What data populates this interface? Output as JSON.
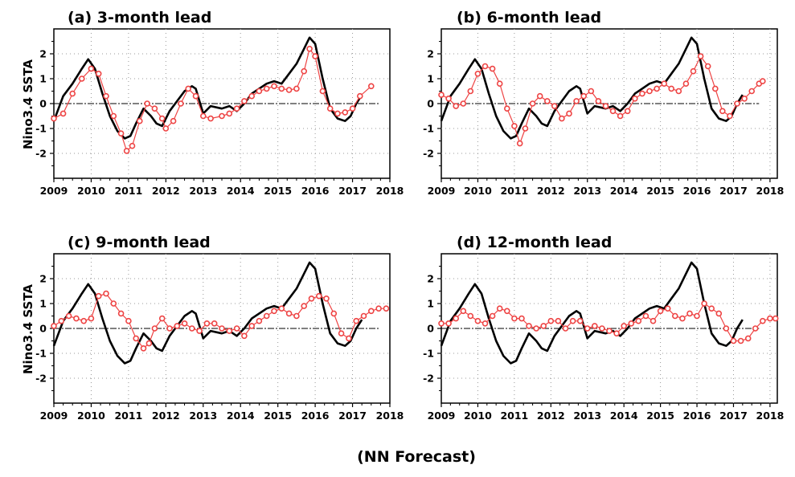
{
  "figure": {
    "caption": "(NN Forecast)"
  },
  "style": {
    "observed_color": "#000000",
    "forecast_color": "#ee4444",
    "grid_color": "#999999"
  },
  "chart_data": [
    {
      "type": "line",
      "title": "(a) 3-month lead",
      "ylabel": "Nino3.4 SSTA",
      "xlim": [
        2009,
        2018
      ],
      "ylim": [
        -3,
        3
      ],
      "xticks": [
        "2009",
        "2010",
        "2011",
        "2012",
        "2013",
        "2014",
        "2015",
        "2016",
        "2017",
        "2018"
      ],
      "yticks": [
        "-2",
        "-1",
        "0",
        "1",
        "2"
      ],
      "grid": true,
      "series": [
        {
          "style": "solid-line",
          "x": [
            2009.0,
            2009.25,
            2009.5,
            2009.75,
            2009.92,
            2010.1,
            2010.3,
            2010.5,
            2010.7,
            2010.9,
            2011.05,
            2011.2,
            2011.4,
            2011.6,
            2011.75,
            2011.9,
            2012.1,
            2012.3,
            2012.5,
            2012.7,
            2012.8,
            2013.0,
            2013.2,
            2013.5,
            2013.7,
            2013.9,
            2014.1,
            2014.3,
            2014.5,
            2014.7,
            2014.9,
            2015.1,
            2015.3,
            2015.5,
            2015.7,
            2015.85,
            2016.0,
            2016.2,
            2016.4,
            2016.6,
            2016.8,
            2016.95,
            2017.1,
            2017.25
          ],
          "y": [
            -0.7,
            0.3,
            0.8,
            1.4,
            1.78,
            1.4,
            0.4,
            -0.5,
            -1.1,
            -1.4,
            -1.3,
            -0.8,
            -0.2,
            -0.5,
            -0.8,
            -0.9,
            -0.3,
            0.1,
            0.5,
            0.7,
            0.6,
            -0.4,
            -0.1,
            -0.2,
            -0.1,
            -0.3,
            0.0,
            0.4,
            0.6,
            0.8,
            0.9,
            0.8,
            1.2,
            1.6,
            2.2,
            2.65,
            2.4,
            1.0,
            -0.2,
            -0.6,
            -0.7,
            -0.5,
            0.0,
            0.35
          ]
        },
        {
          "style": "circles",
          "x": [
            2009.0,
            2009.25,
            2009.5,
            2009.75,
            2010.0,
            2010.2,
            2010.4,
            2010.6,
            2010.8,
            2010.95,
            2011.1,
            2011.3,
            2011.5,
            2011.7,
            2011.9,
            2012.0,
            2012.2,
            2012.4,
            2012.6,
            2012.8,
            2013.0,
            2013.2,
            2013.5,
            2013.7,
            2013.9,
            2014.1,
            2014.3,
            2014.5,
            2014.7,
            2014.9,
            2015.1,
            2015.3,
            2015.5,
            2015.7,
            2015.85,
            2016.0,
            2016.2,
            2016.4,
            2016.6,
            2016.8,
            2017.0,
            2017.2,
            2017.5
          ],
          "y": [
            -0.6,
            -0.4,
            0.4,
            1.0,
            1.4,
            1.2,
            0.3,
            -0.5,
            -1.2,
            -1.9,
            -1.7,
            -0.7,
            0.0,
            -0.2,
            -0.6,
            -1.0,
            -0.7,
            0.0,
            0.6,
            0.3,
            -0.5,
            -0.6,
            -0.5,
            -0.4,
            -0.2,
            0.1,
            0.3,
            0.5,
            0.6,
            0.7,
            0.6,
            0.55,
            0.6,
            1.3,
            2.2,
            1.9,
            0.5,
            -0.2,
            -0.4,
            -0.35,
            -0.2,
            0.3,
            0.7
          ]
        }
      ]
    },
    {
      "type": "line",
      "title": "(b) 6-month lead",
      "xlim": [
        2009,
        2018.2
      ],
      "ylim": [
        -3,
        3
      ],
      "xticks": [
        "2009",
        "2010",
        "2011",
        "2012",
        "2013",
        "2014",
        "2015",
        "2016",
        "2017",
        "2018"
      ],
      "yticks": [
        "-2",
        "-1",
        "0",
        "1",
        "2"
      ],
      "grid": true,
      "series": [
        {
          "style": "solid-line",
          "x": [
            2009.0,
            2009.25,
            2009.5,
            2009.75,
            2009.92,
            2010.1,
            2010.3,
            2010.5,
            2010.7,
            2010.9,
            2011.05,
            2011.2,
            2011.4,
            2011.6,
            2011.75,
            2011.9,
            2012.1,
            2012.3,
            2012.5,
            2012.7,
            2012.8,
            2013.0,
            2013.2,
            2013.5,
            2013.7,
            2013.9,
            2014.1,
            2014.3,
            2014.5,
            2014.7,
            2014.9,
            2015.1,
            2015.3,
            2015.5,
            2015.7,
            2015.85,
            2016.0,
            2016.2,
            2016.4,
            2016.6,
            2016.8,
            2016.95,
            2017.1,
            2017.25
          ],
          "y": [
            -0.7,
            0.3,
            0.8,
            1.4,
            1.78,
            1.4,
            0.4,
            -0.5,
            -1.1,
            -1.4,
            -1.3,
            -0.8,
            -0.2,
            -0.5,
            -0.8,
            -0.9,
            -0.3,
            0.1,
            0.5,
            0.7,
            0.6,
            -0.4,
            -0.1,
            -0.2,
            -0.1,
            -0.3,
            0.0,
            0.4,
            0.6,
            0.8,
            0.9,
            0.8,
            1.2,
            1.6,
            2.2,
            2.65,
            2.4,
            1.0,
            -0.2,
            -0.6,
            -0.7,
            -0.5,
            0.0,
            0.35
          ]
        },
        {
          "style": "circles",
          "x": [
            2009.0,
            2009.2,
            2009.4,
            2009.6,
            2009.8,
            2010.0,
            2010.2,
            2010.4,
            2010.6,
            2010.8,
            2011.0,
            2011.15,
            2011.3,
            2011.5,
            2011.7,
            2011.9,
            2012.1,
            2012.3,
            2012.5,
            2012.7,
            2012.9,
            2013.1,
            2013.3,
            2013.5,
            2013.7,
            2013.9,
            2014.1,
            2014.3,
            2014.5,
            2014.7,
            2014.9,
            2015.1,
            2015.3,
            2015.5,
            2015.7,
            2015.9,
            2016.1,
            2016.3,
            2016.5,
            2016.7,
            2016.9,
            2017.1,
            2017.3,
            2017.5,
            2017.7,
            2017.8
          ],
          "y": [
            0.35,
            0.2,
            -0.1,
            0.0,
            0.5,
            1.2,
            1.5,
            1.4,
            0.8,
            -0.2,
            -0.9,
            -1.6,
            -1.0,
            0.0,
            0.3,
            0.1,
            -0.1,
            -0.6,
            -0.4,
            0.1,
            0.3,
            0.5,
            0.1,
            -0.1,
            -0.3,
            -0.5,
            -0.3,
            0.2,
            0.4,
            0.5,
            0.6,
            0.8,
            0.6,
            0.5,
            0.8,
            1.3,
            1.9,
            1.5,
            0.6,
            -0.3,
            -0.5,
            0.0,
            0.2,
            0.5,
            0.8,
            0.9
          ]
        }
      ]
    },
    {
      "type": "line",
      "title": "(c) 9-month lead",
      "ylabel": "Nino3.4 SSTA",
      "xlim": [
        2009,
        2018
      ],
      "ylim": [
        -3,
        3
      ],
      "xticks": [
        "2009",
        "2010",
        "2011",
        "2012",
        "2013",
        "2014",
        "2015",
        "2016",
        "2017",
        "2018"
      ],
      "yticks": [
        "-2",
        "-1",
        "0",
        "1",
        "2"
      ],
      "grid": true,
      "series": [
        {
          "style": "solid-line",
          "x": [
            2009.0,
            2009.25,
            2009.5,
            2009.75,
            2009.92,
            2010.1,
            2010.3,
            2010.5,
            2010.7,
            2010.9,
            2011.05,
            2011.2,
            2011.4,
            2011.6,
            2011.75,
            2011.9,
            2012.1,
            2012.3,
            2012.5,
            2012.7,
            2012.8,
            2013.0,
            2013.2,
            2013.5,
            2013.7,
            2013.9,
            2014.1,
            2014.3,
            2014.5,
            2014.7,
            2014.9,
            2015.1,
            2015.3,
            2015.5,
            2015.7,
            2015.85,
            2016.0,
            2016.2,
            2016.4,
            2016.6,
            2016.8,
            2016.95,
            2017.1,
            2017.25
          ],
          "y": [
            -0.7,
            0.3,
            0.8,
            1.4,
            1.78,
            1.4,
            0.4,
            -0.5,
            -1.1,
            -1.4,
            -1.3,
            -0.8,
            -0.2,
            -0.5,
            -0.8,
            -0.9,
            -0.3,
            0.1,
            0.5,
            0.7,
            0.6,
            -0.4,
            -0.1,
            -0.2,
            -0.1,
            -0.3,
            0.0,
            0.4,
            0.6,
            0.8,
            0.9,
            0.8,
            1.2,
            1.6,
            2.2,
            2.65,
            2.4,
            1.0,
            -0.2,
            -0.6,
            -0.7,
            -0.5,
            0.0,
            0.35
          ]
        },
        {
          "style": "circles",
          "x": [
            2009.0,
            2009.2,
            2009.4,
            2009.6,
            2009.8,
            2010.0,
            2010.2,
            2010.4,
            2010.6,
            2010.8,
            2011.0,
            2011.2,
            2011.4,
            2011.55,
            2011.7,
            2011.9,
            2012.1,
            2012.3,
            2012.5,
            2012.7,
            2012.9,
            2013.1,
            2013.3,
            2013.5,
            2013.7,
            2013.9,
            2014.1,
            2014.3,
            2014.5,
            2014.7,
            2014.9,
            2015.1,
            2015.3,
            2015.5,
            2015.7,
            2015.9,
            2016.1,
            2016.3,
            2016.5,
            2016.7,
            2016.9,
            2017.1,
            2017.3,
            2017.5,
            2017.7,
            2017.9
          ],
          "y": [
            0.1,
            0.3,
            0.5,
            0.4,
            0.3,
            0.4,
            1.3,
            1.4,
            1.0,
            0.6,
            0.3,
            -0.4,
            -0.8,
            -0.6,
            0.0,
            0.4,
            0.0,
            0.1,
            0.2,
            0.0,
            -0.1,
            0.2,
            0.2,
            0.0,
            -0.1,
            0.0,
            -0.3,
            0.1,
            0.3,
            0.5,
            0.7,
            0.8,
            0.6,
            0.5,
            0.9,
            1.2,
            1.3,
            1.2,
            0.6,
            -0.2,
            -0.4,
            0.3,
            0.5,
            0.7,
            0.8,
            0.8
          ]
        }
      ]
    },
    {
      "type": "line",
      "title": "(d) 12-month lead",
      "xlim": [
        2009,
        2018.2
      ],
      "ylim": [
        -3,
        3
      ],
      "xticks": [
        "2009",
        "2010",
        "2011",
        "2012",
        "2013",
        "2014",
        "2015",
        "2016",
        "2017",
        "2018"
      ],
      "yticks": [
        "-2",
        "-1",
        "0",
        "1",
        "2"
      ],
      "grid": true,
      "series": [
        {
          "style": "solid-line",
          "x": [
            2009.0,
            2009.25,
            2009.5,
            2009.75,
            2009.92,
            2010.1,
            2010.3,
            2010.5,
            2010.7,
            2010.9,
            2011.05,
            2011.2,
            2011.4,
            2011.6,
            2011.75,
            2011.9,
            2012.1,
            2012.3,
            2012.5,
            2012.7,
            2012.8,
            2013.0,
            2013.2,
            2013.5,
            2013.7,
            2013.9,
            2014.1,
            2014.3,
            2014.5,
            2014.7,
            2014.9,
            2015.1,
            2015.3,
            2015.5,
            2015.7,
            2015.85,
            2016.0,
            2016.2,
            2016.4,
            2016.6,
            2016.8,
            2016.95,
            2017.1,
            2017.25
          ],
          "y": [
            -0.7,
            0.3,
            0.8,
            1.4,
            1.78,
            1.4,
            0.4,
            -0.5,
            -1.1,
            -1.4,
            -1.3,
            -0.8,
            -0.2,
            -0.5,
            -0.8,
            -0.9,
            -0.3,
            0.1,
            0.5,
            0.7,
            0.6,
            -0.4,
            -0.1,
            -0.2,
            -0.1,
            -0.3,
            0.0,
            0.4,
            0.6,
            0.8,
            0.9,
            0.8,
            1.2,
            1.6,
            2.2,
            2.65,
            2.4,
            1.0,
            -0.2,
            -0.6,
            -0.7,
            -0.5,
            0.0,
            0.35
          ]
        },
        {
          "style": "circles",
          "x": [
            2009.0,
            2009.2,
            2009.4,
            2009.6,
            2009.8,
            2010.0,
            2010.2,
            2010.4,
            2010.6,
            2010.8,
            2011.0,
            2011.2,
            2011.4,
            2011.6,
            2011.8,
            2012.0,
            2012.2,
            2012.4,
            2012.6,
            2012.8,
            2013.0,
            2013.2,
            2013.4,
            2013.6,
            2013.8,
            2014.0,
            2014.2,
            2014.4,
            2014.6,
            2014.8,
            2015.0,
            2015.2,
            2015.4,
            2015.6,
            2015.8,
            2016.0,
            2016.2,
            2016.4,
            2016.6,
            2016.8,
            2017.0,
            2017.2,
            2017.4,
            2017.6,
            2017.8,
            2018.0,
            2018.15
          ],
          "y": [
            0.2,
            0.2,
            0.4,
            0.7,
            0.5,
            0.3,
            0.2,
            0.5,
            0.8,
            0.7,
            0.4,
            0.4,
            0.1,
            0.0,
            0.1,
            0.3,
            0.3,
            0.0,
            0.3,
            0.3,
            0.0,
            0.1,
            0.0,
            -0.1,
            -0.2,
            0.1,
            0.2,
            0.3,
            0.5,
            0.3,
            0.7,
            0.8,
            0.5,
            0.4,
            0.6,
            0.5,
            1.0,
            0.8,
            0.6,
            0.0,
            -0.5,
            -0.5,
            -0.4,
            0.0,
            0.3,
            0.4,
            0.4
          ]
        }
      ]
    }
  ]
}
